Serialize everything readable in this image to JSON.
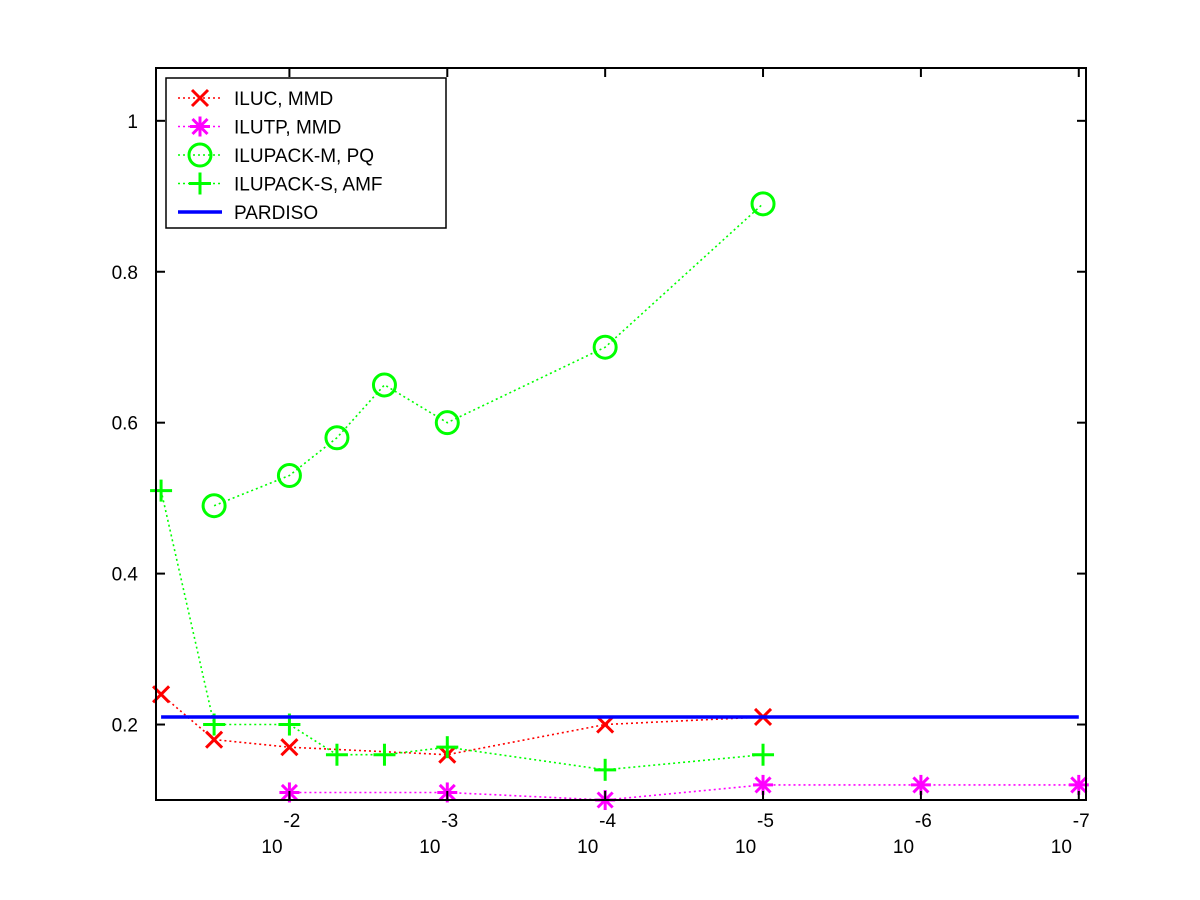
{
  "chart_data": {
    "type": "line",
    "title": "",
    "xlabel": "",
    "ylabel": "",
    "xscale": "log",
    "xaxis_reversed": true,
    "xlim": [
      0.07,
      9e-08
    ],
    "ylim": [
      0.1,
      1.07
    ],
    "grid": false,
    "legend_position": "top-left",
    "x_ticks": [
      {
        "base": "10",
        "exp": "-2",
        "value": 0.01
      },
      {
        "base": "10",
        "exp": "-3",
        "value": 0.001
      },
      {
        "base": "10",
        "exp": "-4",
        "value": 0.0001
      },
      {
        "base": "10",
        "exp": "-5",
        "value": 1e-05
      },
      {
        "base": "10",
        "exp": "-6",
        "value": 1e-06
      },
      {
        "base": "10",
        "exp": "-7",
        "value": 1e-07
      }
    ],
    "y_ticks": [
      {
        "label": "0.2",
        "value": 0.2
      },
      {
        "label": "0.4",
        "value": 0.4
      },
      {
        "label": "0.6",
        "value": 0.6
      },
      {
        "label": "0.8",
        "value": 0.8
      },
      {
        "label": "1",
        "value": 1.0
      }
    ],
    "series": [
      {
        "name": "ILUC, MMD",
        "color": "#ff0000",
        "marker": "x",
        "line": "dotted",
        "points": [
          [
            0.065,
            0.24
          ],
          [
            0.03,
            0.18
          ],
          [
            0.01,
            0.17
          ],
          [
            0.001,
            0.16
          ],
          [
            0.0001,
            0.2
          ],
          [
            1e-05,
            0.21
          ]
        ]
      },
      {
        "name": "ILUTP, MMD",
        "color": "#ff00ff",
        "marker": "star",
        "line": "dotted",
        "points": [
          [
            0.01,
            0.11
          ],
          [
            0.001,
            0.11
          ],
          [
            0.0001,
            0.1
          ],
          [
            1e-05,
            0.12
          ],
          [
            1e-06,
            0.12
          ],
          [
            1e-07,
            0.12
          ]
        ]
      },
      {
        "name": "ILUPACK-M, PQ",
        "color": "#00ff00",
        "marker": "circle",
        "line": "dotted",
        "points": [
          [
            0.03,
            0.49
          ],
          [
            0.01,
            0.53
          ],
          [
            0.005,
            0.58
          ],
          [
            0.0025,
            0.65
          ],
          [
            0.001,
            0.6
          ],
          [
            0.0001,
            0.7
          ],
          [
            1e-05,
            0.89
          ]
        ]
      },
      {
        "name": "ILUPACK-S, AMF",
        "color": "#00ff00",
        "marker": "plus",
        "line": "dotted",
        "points": [
          [
            0.065,
            0.51
          ],
          [
            0.03,
            0.2
          ],
          [
            0.01,
            0.2
          ],
          [
            0.005,
            0.16
          ],
          [
            0.0025,
            0.16
          ],
          [
            0.001,
            0.17
          ],
          [
            0.0001,
            0.14
          ],
          [
            1e-05,
            0.16
          ]
        ]
      },
      {
        "name": "PARDISO",
        "color": "#0000ff",
        "marker": "none",
        "line": "solid",
        "points": [
          [
            0.065,
            0.21
          ],
          [
            1e-07,
            0.21
          ]
        ]
      }
    ]
  }
}
